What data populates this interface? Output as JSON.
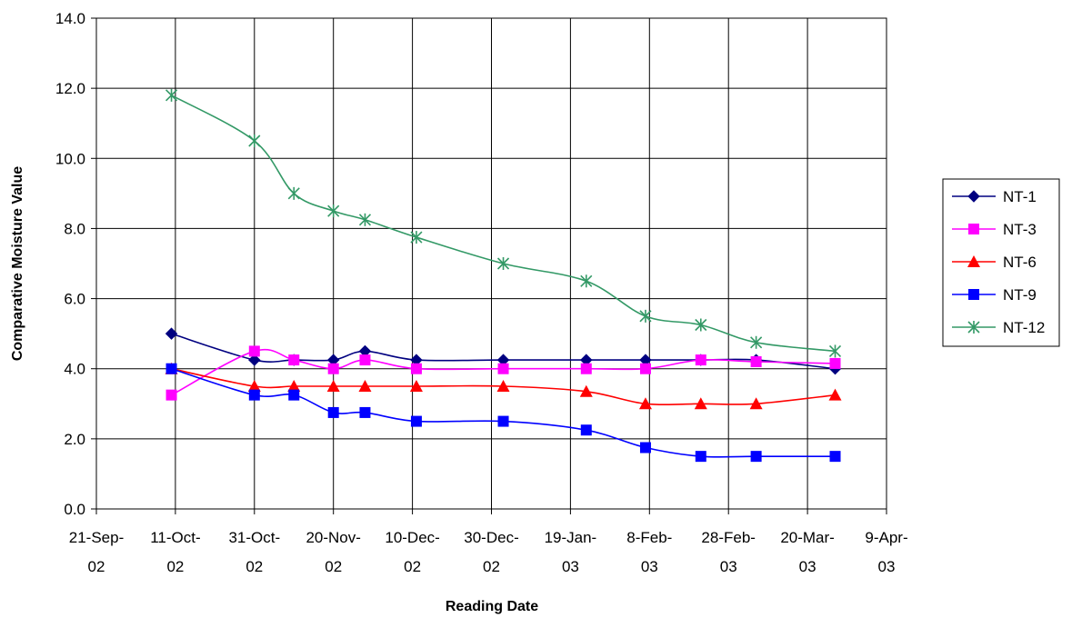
{
  "chart_data": {
    "type": "line",
    "title": "",
    "xlabel": "Reading Date",
    "ylabel": "Comparative Moisture Value",
    "xlim": [
      "2002-09-21",
      "2003-04-09"
    ],
    "ylim": [
      0,
      14
    ],
    "grid": true,
    "legend_position": "right",
    "y_ticks": [
      "0.0",
      "2.0",
      "4.0",
      "6.0",
      "8.0",
      "10.0",
      "12.0",
      "14.0"
    ],
    "x_ticks": [
      {
        "date": "2002-09-21",
        "line1": "21-Sep-",
        "line2": "02"
      },
      {
        "date": "2002-10-11",
        "line1": "11-Oct-",
        "line2": "02"
      },
      {
        "date": "2002-10-31",
        "line1": "31-Oct-",
        "line2": "02"
      },
      {
        "date": "2002-11-20",
        "line1": "20-Nov-",
        "line2": "02"
      },
      {
        "date": "2002-12-10",
        "line1": "10-Dec-",
        "line2": "02"
      },
      {
        "date": "2002-12-30",
        "line1": "30-Dec-",
        "line2": "02"
      },
      {
        "date": "2003-01-19",
        "line1": "19-Jan-",
        "line2": "03"
      },
      {
        "date": "2003-02-08",
        "line1": "8-Feb-",
        "line2": "03"
      },
      {
        "date": "2003-02-28",
        "line1": "28-Feb-",
        "line2": "03"
      },
      {
        "date": "2003-03-20",
        "line1": "20-Mar-",
        "line2": "03"
      },
      {
        "date": "2003-04-09",
        "line1": "9-Apr-",
        "line2": "03"
      }
    ],
    "series": [
      {
        "name": "NT-1",
        "color": "#000080",
        "marker": "diamond",
        "x": [
          "2002-10-10",
          "2002-10-31",
          "2002-11-10",
          "2002-11-20",
          "2002-11-28",
          "2002-12-11",
          "2003-01-02",
          "2003-01-23",
          "2003-02-07",
          "2003-02-21",
          "2003-03-07",
          "2003-03-27"
        ],
        "y": [
          5.0,
          4.25,
          4.25,
          4.25,
          4.5,
          4.25,
          4.25,
          4.25,
          4.25,
          4.25,
          4.25,
          4.0
        ]
      },
      {
        "name": "NT-3",
        "color": "#ff00ff",
        "marker": "square",
        "x": [
          "2002-10-10",
          "2002-10-31",
          "2002-11-10",
          "2002-11-20",
          "2002-11-28",
          "2002-12-11",
          "2003-01-02",
          "2003-01-23",
          "2003-02-07",
          "2003-02-21",
          "2003-03-07",
          "2003-03-27"
        ],
        "y": [
          3.25,
          4.5,
          4.25,
          4.0,
          4.25,
          4.0,
          4.0,
          4.0,
          4.0,
          4.25,
          4.2,
          4.15
        ]
      },
      {
        "name": "NT-6",
        "color": "#ff0000",
        "marker": "triangle",
        "x": [
          "2002-10-10",
          "2002-10-31",
          "2002-11-10",
          "2002-11-20",
          "2002-11-28",
          "2002-12-11",
          "2003-01-02",
          "2003-01-23",
          "2003-02-07",
          "2003-02-21",
          "2003-03-07",
          "2003-03-27"
        ],
        "y": [
          4.0,
          3.5,
          3.5,
          3.5,
          3.5,
          3.5,
          3.5,
          3.35,
          3.0,
          3.0,
          3.0,
          3.25
        ]
      },
      {
        "name": "NT-9",
        "color": "#0000ff",
        "marker": "square",
        "x": [
          "2002-10-10",
          "2002-10-31",
          "2002-11-10",
          "2002-11-20",
          "2002-11-28",
          "2002-12-11",
          "2003-01-02",
          "2003-01-23",
          "2003-02-07",
          "2003-02-21",
          "2003-03-07",
          "2003-03-27"
        ],
        "y": [
          4.0,
          3.25,
          3.25,
          2.75,
          2.75,
          2.5,
          2.5,
          2.25,
          1.75,
          1.5,
          1.5,
          1.5
        ]
      },
      {
        "name": "NT-12",
        "color": "#339966",
        "marker": "asterisk",
        "x": [
          "2002-10-10",
          "2002-10-31",
          "2002-11-10",
          "2002-11-20",
          "2002-11-28",
          "2002-12-11",
          "2003-01-02",
          "2003-01-23",
          "2003-02-07",
          "2003-02-21",
          "2003-03-07",
          "2003-03-27"
        ],
        "y": [
          11.8,
          10.5,
          9.0,
          8.5,
          8.25,
          7.75,
          7.0,
          6.5,
          5.5,
          5.25,
          4.75,
          4.5
        ]
      }
    ]
  }
}
